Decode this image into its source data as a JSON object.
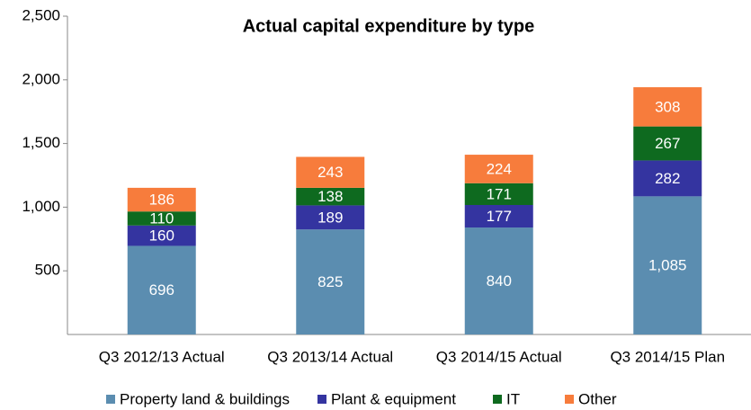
{
  "chart_data": {
    "type": "stacked-bar",
    "title": "Actual capital expenditure  by type",
    "categories": [
      "Q3 2012/13 Actual",
      "Q3 2013/14 Actual",
      "Q3 2014/15 Actual",
      "Q3 2014/15 Plan"
    ],
    "series": [
      {
        "name": "Property land & buildings",
        "color": "#5b8db0",
        "values": [
          696,
          825,
          840,
          1085
        ],
        "value_labels": [
          "696",
          "825",
          "840",
          "1,085"
        ]
      },
      {
        "name": "Plant & equipment",
        "color": "#3434a0",
        "values": [
          160,
          189,
          177,
          282
        ]
      },
      {
        "name": "IT",
        "color": "#0e6a1f",
        "values": [
          110,
          138,
          171,
          267
        ]
      },
      {
        "name": "Other",
        "color": "#f77c3c",
        "values": [
          186,
          243,
          224,
          308
        ]
      }
    ],
    "ylim": [
      0,
      2500
    ],
    "yticks": [
      500,
      {
        "value": 1000,
        "label": "1,000"
      },
      {
        "value": 1500,
        "label": "1,500"
      },
      {
        "value": 2000,
        "label": "2,000"
      },
      {
        "value": 2500,
        "label": "2,500"
      }
    ],
    "legend": "bottom"
  }
}
